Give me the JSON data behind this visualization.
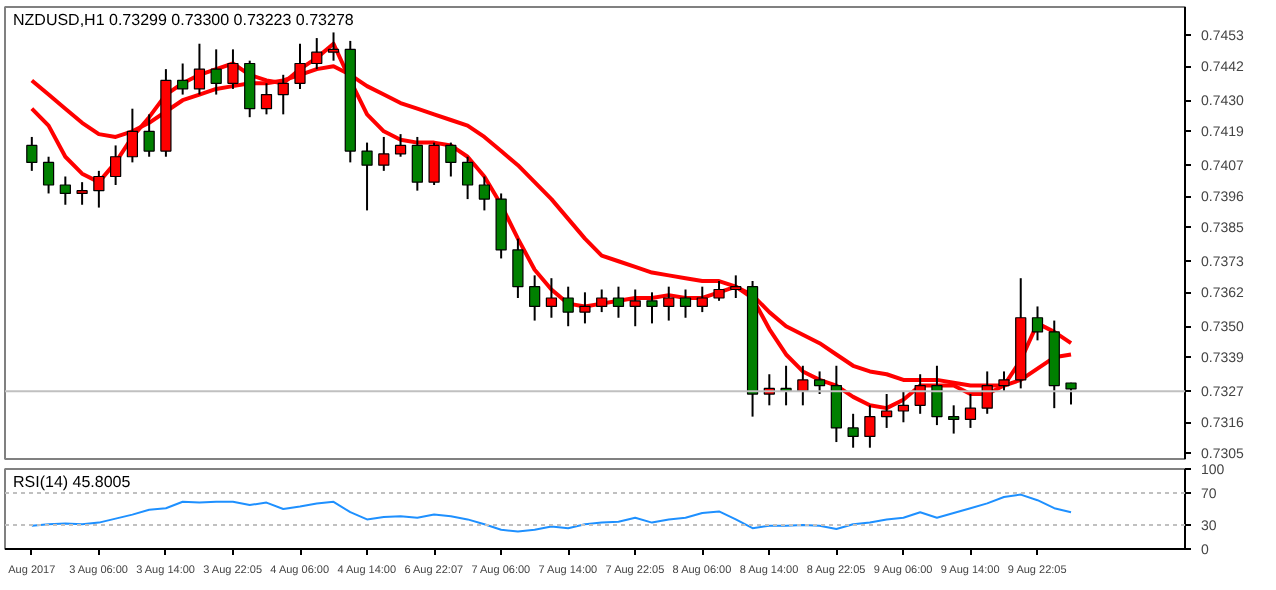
{
  "chart_data": [
    {
      "type": "candlestick",
      "title": "NZDUSD,H1 0.73299 0.73300 0.73223 0.73278",
      "categories": [
        null,
        null,
        null,
        null,
        null,
        null,
        null,
        null,
        null,
        null,
        null,
        null,
        null,
        null,
        null,
        null,
        null,
        null,
        null,
        null,
        null,
        null,
        null,
        null,
        null,
        null,
        null,
        null,
        null,
        null,
        null,
        null,
        null,
        null,
        null,
        null,
        null,
        null,
        null,
        null,
        null,
        null,
        null,
        null,
        null,
        null,
        null,
        null,
        null,
        null,
        null,
        null,
        null,
        null,
        null,
        null,
        null,
        null,
        null,
        null,
        null,
        null,
        null
      ],
      "ohlc": [
        [
          0.7414,
          0.7417,
          0.7405,
          0.7408
        ],
        [
          0.7408,
          0.741,
          0.7397,
          0.74
        ],
        [
          0.74,
          0.7403,
          0.7393,
          0.7397
        ],
        [
          0.7397,
          0.7401,
          0.7393,
          0.7398
        ],
        [
          0.7398,
          0.7405,
          0.7392,
          0.7403
        ],
        [
          0.7403,
          0.7414,
          0.74,
          0.741
        ],
        [
          0.741,
          0.7427,
          0.7408,
          0.7419
        ],
        [
          0.7419,
          0.7425,
          0.741,
          0.7412
        ],
        [
          0.7412,
          0.7441,
          0.741,
          0.7437
        ],
        [
          0.7437,
          0.7443,
          0.7432,
          0.7434
        ],
        [
          0.7434,
          0.745,
          0.7432,
          0.7441
        ],
        [
          0.7441,
          0.7448,
          0.7432,
          0.7436
        ],
        [
          0.7436,
          0.7448,
          0.7434,
          0.7443
        ],
        [
          0.7443,
          0.7444,
          0.7424,
          0.7427
        ],
        [
          0.7427,
          0.7436,
          0.7425,
          0.7432
        ],
        [
          0.7432,
          0.7439,
          0.7425,
          0.7436
        ],
        [
          0.7436,
          0.745,
          0.7434,
          0.7443
        ],
        [
          0.7443,
          0.7452,
          0.7441,
          0.7447
        ],
        [
          0.7447,
          0.7454,
          0.7444,
          0.7448
        ],
        [
          0.7448,
          0.7451,
          0.7408,
          0.7412
        ],
        [
          0.7412,
          0.7415,
          0.7391,
          0.7407
        ],
        [
          0.7407,
          0.7417,
          0.7405,
          0.7411
        ],
        [
          0.7411,
          0.7418,
          0.741,
          0.7414
        ],
        [
          0.7414,
          0.7417,
          0.7398,
          0.7401
        ],
        [
          0.7401,
          0.7415,
          0.74,
          0.7414
        ],
        [
          0.7414,
          0.7415,
          0.7403,
          0.7408
        ],
        [
          0.7408,
          0.741,
          0.7395,
          0.74
        ],
        [
          0.74,
          0.7403,
          0.7391,
          0.7395
        ],
        [
          0.7395,
          0.7397,
          0.7374,
          0.7377
        ],
        [
          0.7377,
          0.7381,
          0.736,
          0.7364
        ],
        [
          0.7364,
          0.7368,
          0.7352,
          0.7357
        ],
        [
          0.7357,
          0.7367,
          0.7353,
          0.736
        ],
        [
          0.736,
          0.7364,
          0.735,
          0.7355
        ],
        [
          0.7355,
          0.7362,
          0.7351,
          0.7357
        ],
        [
          0.7357,
          0.7363,
          0.7355,
          0.736
        ],
        [
          0.736,
          0.7364,
          0.7353,
          0.7357
        ],
        [
          0.7357,
          0.7363,
          0.735,
          0.7359
        ],
        [
          0.7359,
          0.7362,
          0.7351,
          0.7357
        ],
        [
          0.7357,
          0.7364,
          0.7352,
          0.736
        ],
        [
          0.736,
          0.7363,
          0.7353,
          0.7357
        ],
        [
          0.7357,
          0.7364,
          0.7355,
          0.736
        ],
        [
          0.736,
          0.7366,
          0.7359,
          0.7363
        ],
        [
          0.7363,
          0.7368,
          0.736,
          0.7364
        ],
        [
          0.7364,
          0.7366,
          0.7318,
          0.7326
        ],
        [
          0.7326,
          0.7333,
          0.7322,
          0.7328
        ],
        [
          0.7328,
          0.7336,
          0.7322,
          0.7327
        ],
        [
          0.7327,
          0.7336,
          0.7322,
          0.7331
        ],
        [
          0.7331,
          0.7334,
          0.7326,
          0.7329
        ],
        [
          0.7329,
          0.7336,
          0.7309,
          0.7314
        ],
        [
          0.7314,
          0.7319,
          0.7307,
          0.7311
        ],
        [
          0.7311,
          0.7322,
          0.7307,
          0.7318
        ],
        [
          0.7318,
          0.7326,
          0.7314,
          0.732
        ],
        [
          0.732,
          0.7327,
          0.7316,
          0.7322
        ],
        [
          0.7322,
          0.7333,
          0.7319,
          0.7329
        ],
        [
          0.7329,
          0.7336,
          0.7315,
          0.7318
        ],
        [
          0.7318,
          0.7322,
          0.7312,
          0.7317
        ],
        [
          0.7317,
          0.7326,
          0.7314,
          0.7321
        ],
        [
          0.7321,
          0.7334,
          0.7319,
          0.7329
        ],
        [
          0.7329,
          0.7334,
          0.7327,
          0.7331
        ],
        [
          0.7331,
          0.7367,
          0.7328,
          0.7353
        ],
        [
          0.7353,
          0.7357,
          0.7345,
          0.7348
        ],
        [
          0.7348,
          0.7352,
          0.7321,
          0.7329
        ],
        [
          0.73299,
          0.733,
          0.73223,
          0.73278
        ]
      ],
      "colors": [
        "#008000",
        "#008000",
        "#008000",
        "#ff0000",
        "#ff0000",
        "#ff0000",
        "#ff0000",
        "#008000",
        "#ff0000",
        "#008000",
        "#ff0000",
        "#008000",
        "#ff0000",
        "#008000",
        "#ff0000",
        "#ff0000",
        "#ff0000",
        "#ff0000",
        "#ff0000",
        "#008000",
        "#008000",
        "#ff0000",
        "#ff0000",
        "#008000",
        "#ff0000",
        "#008000",
        "#008000",
        "#008000",
        "#008000",
        "#008000",
        "#008000",
        "#ff0000",
        "#008000",
        "#ff0000",
        "#ff0000",
        "#008000",
        "#ff0000",
        "#008000",
        "#ff0000",
        "#008000",
        "#ff0000",
        "#ff0000",
        "#ff0000",
        "#008000",
        "#ff0000",
        "#008000",
        "#ff0000",
        "#008000",
        "#008000",
        "#008000",
        "#ff0000",
        "#ff0000",
        "#ff0000",
        "#ff0000",
        "#008000",
        "#008000",
        "#ff0000",
        "#ff0000",
        "#ff0000",
        "#ff0000",
        "#008000",
        "#008000",
        "#008000"
      ],
      "series": [
        {
          "type": "line",
          "color": "#ff0000",
          "values": [
            0.7427,
            0.7421,
            0.741,
            0.7404,
            0.7401,
            0.7408,
            0.7417,
            0.7424,
            0.7432,
            0.7436,
            0.7439,
            0.7441,
            0.7443,
            0.7439,
            0.7437,
            0.7436,
            0.7441,
            0.7445,
            0.745,
            0.7437,
            0.7425,
            0.7419,
            0.7416,
            0.7415,
            0.7415,
            0.7414,
            0.741,
            0.7403,
            0.7393,
            0.7381,
            0.737,
            0.7363,
            0.7358,
            0.7357,
            0.7358,
            0.7359,
            0.736,
            0.736,
            0.7361,
            0.736,
            0.736,
            0.7362,
            0.7364,
            0.736,
            0.7349,
            0.734,
            0.7334,
            0.7331,
            0.7329,
            0.7325,
            0.7322,
            0.7321,
            0.7324,
            0.7329,
            0.7329,
            0.7329,
            0.7326,
            0.7326,
            0.7329,
            0.7338,
            0.7351,
            0.7348,
            0.7344
          ]
        },
        {
          "type": "line",
          "color": "#ff0000",
          "values": [
            0.7437,
            0.7432,
            0.7427,
            0.7422,
            0.7418,
            0.7417,
            0.7419,
            0.7422,
            0.7426,
            0.743,
            0.7432,
            0.7434,
            0.7435,
            0.7436,
            0.7436,
            0.7437,
            0.7439,
            0.7441,
            0.7442,
            0.7439,
            0.7435,
            0.7432,
            0.7429,
            0.7427,
            0.7425,
            0.7423,
            0.7421,
            0.7417,
            0.7412,
            0.7407,
            0.7401,
            0.7395,
            0.7388,
            0.7381,
            0.7375,
            0.7373,
            0.7371,
            0.7369,
            0.7368,
            0.7367,
            0.7366,
            0.7366,
            0.7364,
            0.7361,
            0.7355,
            0.735,
            0.7347,
            0.7344,
            0.734,
            0.7336,
            0.7334,
            0.7333,
            0.7331,
            0.7331,
            0.7331,
            0.733,
            0.7329,
            0.7329,
            0.7329,
            0.7331,
            0.7335,
            0.7339,
            0.734
          ]
        }
      ],
      "ylim": [
        0.7303,
        0.7463
      ],
      "yticks": [
        0.7453,
        0.7442,
        {
          "value": 0.743,
          "label": "0.7430"
        },
        0.7419,
        0.7407,
        0.7396,
        0.7385,
        0.7373,
        0.7362,
        {
          "value": 0.735,
          "label": "0.7350"
        },
        0.7339,
        0.7316,
        0.7305
      ],
      "ref_lines": [
        {
          "axis": "y",
          "value": 0.7327,
          "label": "0.7327",
          "color": "#c0c0c0"
        }
      ],
      "grid": false,
      "tick_labels": "y"
    },
    {
      "type": "line",
      "title": "RSI(14) 45.8005",
      "categories": [
        "Aug 2017",
        null,
        null,
        null,
        "3 Aug 06:00",
        null,
        null,
        null,
        "3 Aug 14:00",
        null,
        null,
        null,
        "3 Aug 22:05",
        null,
        null,
        null,
        "4 Aug 06:00",
        null,
        null,
        null,
        "4 Aug 14:00",
        null,
        null,
        null,
        "6 Aug 22:07",
        null,
        null,
        null,
        "7 Aug 06:00",
        null,
        null,
        null,
        "7 Aug 14:00",
        null,
        null,
        null,
        "7 Aug 22:05",
        null,
        null,
        null,
        "8 Aug 06:00",
        null,
        null,
        null,
        "8 Aug 14:00",
        null,
        null,
        null,
        "8 Aug 22:05",
        null,
        null,
        null,
        "9 Aug 06:00",
        null,
        null,
        null,
        "9 Aug 14:00",
        null,
        null,
        null,
        "9 Aug 22:05",
        null,
        null
      ],
      "series": [
        {
          "color": "#1e90ff",
          "values": [
            29,
            31,
            32,
            31,
            33,
            38,
            43,
            49,
            51,
            59,
            58,
            59,
            59,
            55,
            58,
            50,
            53,
            57,
            59,
            46,
            37,
            40,
            41,
            39,
            43,
            41,
            37,
            31,
            24,
            22,
            24,
            28,
            26,
            31,
            33,
            34,
            39,
            33,
            37,
            39,
            45,
            47,
            37,
            26,
            29,
            29,
            30,
            29,
            25,
            31,
            33,
            37,
            39,
            46,
            39,
            45,
            51,
            57,
            65,
            68,
            61,
            51,
            46
          ]
        }
      ],
      "ylim": [
        0,
        100
      ],
      "yticks": [
        100,
        70,
        30,
        0
      ],
      "ref_lines": [
        {
          "axis": "y",
          "value": 70,
          "color": "#c0c0c0",
          "line_style": "dashed"
        },
        {
          "axis": "y",
          "value": 30,
          "color": "#c0c0c0",
          "line_style": "dashed"
        }
      ],
      "grid": false
    }
  ]
}
